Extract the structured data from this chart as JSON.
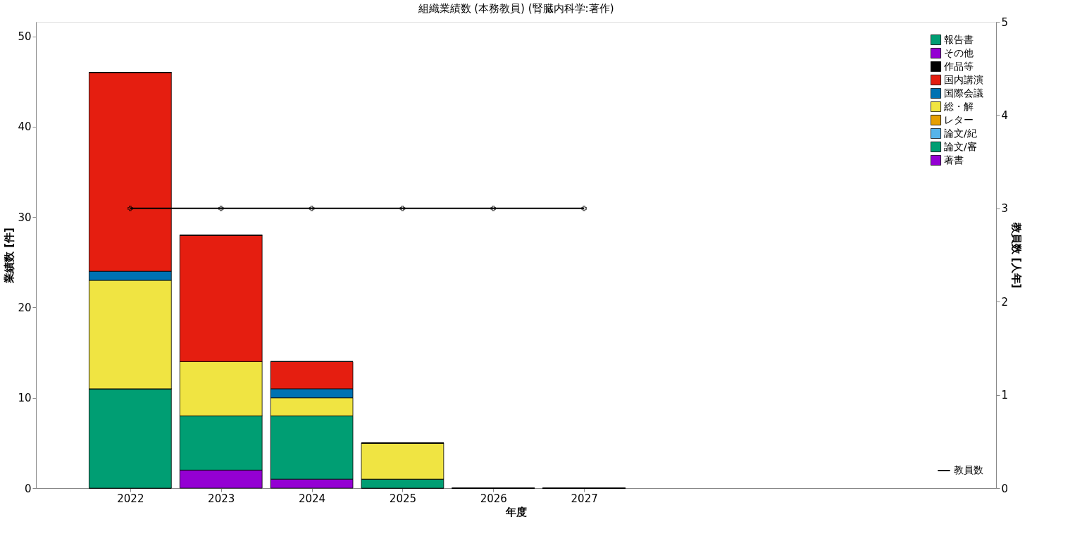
{
  "chart_data": {
    "type": "bar",
    "title": "組織業績数 (本務教員) (腎臓内科学:著作)",
    "xlabel": "年度",
    "ylabel": "業績数 [件]",
    "y2label": "教員数 [人年]",
    "x": [
      2022,
      2023,
      2024,
      2025,
      2026,
      2027
    ],
    "xlim": [
      2021,
      2031.5
    ],
    "xticks": [
      2022,
      2023,
      2024,
      2025,
      2026,
      2027
    ],
    "ylim": [
      0,
      51.6
    ],
    "yticks": [
      0,
      10,
      20,
      30,
      40,
      50
    ],
    "y2lim": [
      0,
      5
    ],
    "y2ticks": [
      0,
      1,
      2,
      3,
      4,
      5
    ],
    "stacked": true,
    "grid": false,
    "legend": "top right",
    "series": [
      {
        "name": "著書",
        "color": "#9400d3",
        "values": [
          0,
          2,
          1,
          0,
          0,
          0
        ]
      },
      {
        "name": "論文/審",
        "color": "#009e73",
        "values": [
          11,
          6,
          7,
          1,
          0,
          0
        ]
      },
      {
        "name": "論文/紀",
        "color": "#56b4e9",
        "values": [
          0,
          0,
          0,
          0,
          0,
          0
        ]
      },
      {
        "name": "レター",
        "color": "#e69f00",
        "values": [
          0,
          0,
          0,
          0,
          0,
          0
        ]
      },
      {
        "name": "総・解",
        "color": "#f0e442",
        "values": [
          12,
          6,
          2,
          4,
          0,
          0
        ]
      },
      {
        "name": "国際会議",
        "color": "#0072b2",
        "values": [
          1,
          0,
          1,
          0,
          0,
          0
        ]
      },
      {
        "name": "国内講演",
        "color": "#e51e10",
        "values": [
          22,
          14,
          3,
          0,
          0,
          0
        ]
      },
      {
        "name": "作品等",
        "color": "#000000",
        "values": [
          0,
          0,
          0,
          0,
          0,
          0
        ]
      },
      {
        "name": "その他",
        "color": "#9400d3",
        "values": [
          0,
          0,
          0,
          0,
          0,
          0
        ]
      },
      {
        "name": "報告書",
        "color": "#009e73",
        "values": [
          0,
          0,
          0,
          0,
          0,
          0
        ]
      },
      {
        "name": "教員数",
        "type": "line",
        "axis": "y2",
        "color": "#000000",
        "marker": "cross",
        "values": [
          3,
          3,
          3,
          3,
          3,
          3
        ]
      }
    ]
  }
}
